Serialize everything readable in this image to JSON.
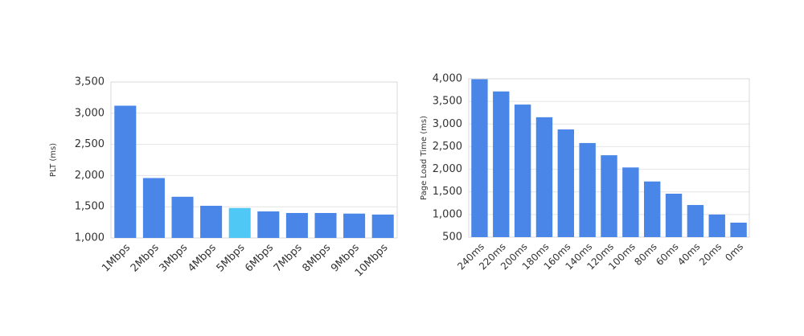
{
  "chart_data": [
    {
      "type": "bar",
      "y_label": "PLT (ms)",
      "categories": [
        "1Mbps",
        "2Mbps",
        "3Mbps",
        "4Mbps",
        "5Mbps",
        "6Mbps",
        "7Mbps",
        "8Mbps",
        "9Mbps",
        "10Mbps"
      ],
      "values": [
        3120,
        1960,
        1660,
        1515,
        1480,
        1425,
        1400,
        1400,
        1390,
        1375
      ],
      "colors": [
        "#4a86e8",
        "#4a86e8",
        "#4a86e8",
        "#4a86e8",
        "#4fc8f5",
        "#4a86e8",
        "#4a86e8",
        "#4a86e8",
        "#4a86e8",
        "#4a86e8"
      ],
      "ylim": [
        1000,
        3500
      ],
      "yticks": [
        {
          "value": 1000,
          "label": "1,000"
        },
        {
          "value": 1500,
          "label": "1,500"
        },
        {
          "value": 2000,
          "label": "2,000"
        },
        {
          "value": 2500,
          "label": "2,500"
        },
        {
          "value": 3000,
          "label": "3,000"
        },
        {
          "value": 3500,
          "label": "3,500"
        }
      ],
      "grid": true
    },
    {
      "type": "bar",
      "y_label": "Page Load Time (ms)",
      "categories": [
        "240ms",
        "220ms",
        "200ms",
        "180ms",
        "160ms",
        "140ms",
        "120ms",
        "100ms",
        "80ms",
        "60ms",
        "40ms",
        "20ms",
        "0ms"
      ],
      "values": [
        3990,
        3720,
        3430,
        3150,
        2880,
        2580,
        2310,
        2040,
        1730,
        1460,
        1210,
        1000,
        820
      ],
      "color": "#4a86e8",
      "ylim": [
        500,
        4000
      ],
      "yticks": [
        500,
        {
          "value": 1000,
          "label": "1,000"
        },
        {
          "value": 1500,
          "label": "1,500"
        },
        {
          "value": 2000,
          "label": "2,000"
        },
        {
          "value": 2500,
          "label": "2,500"
        },
        {
          "value": 3000,
          "label": "3,000"
        },
        {
          "value": 3500,
          "label": "3,500"
        },
        {
          "value": 4000,
          "label": "4,000"
        }
      ],
      "grid": true
    }
  ]
}
